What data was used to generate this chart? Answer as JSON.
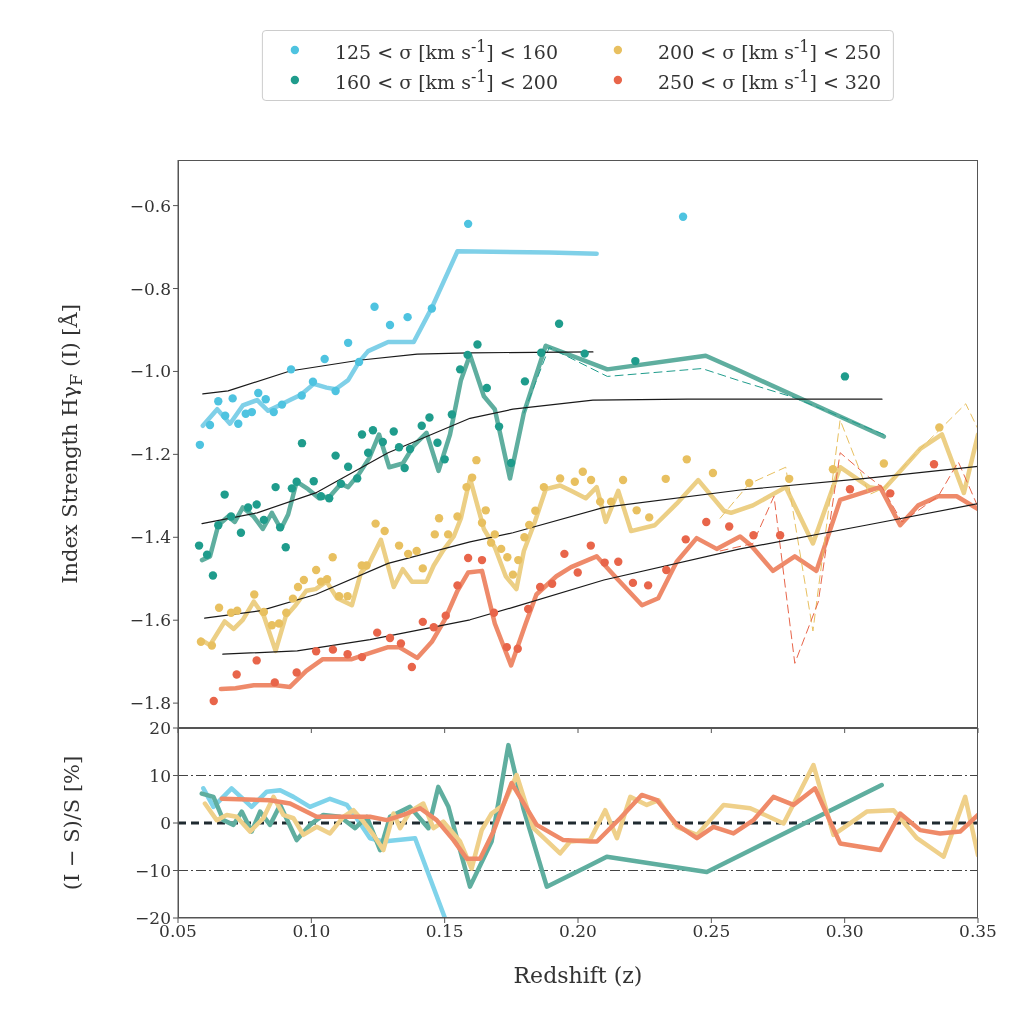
{
  "chart_data": [
    {
      "type": "scatter",
      "ylabel": "Index Strength Hγ$_{F}$ (I) [Å]",
      "legend": "top",
      "tick_labels": "y",
      "xlim": [
        0.05,
        0.35
      ],
      "xticks": [
        0.05,
        0.1,
        0.15,
        0.2,
        0.25,
        0.3,
        0.35
      ],
      "ylim": [
        -1.86,
        -0.49
      ],
      "yticks": [
        {
          "value": -1.8,
          "label": "−1.8"
        },
        {
          "value": -1.6,
          "label": "−1.6"
        },
        {
          "value": -1.4,
          "label": "−1.4"
        },
        {
          "value": -1.2,
          "label": "−1.2"
        },
        {
          "value": -1.0,
          "label": "−1.0"
        },
        {
          "value": -0.8,
          "label": "−0.8"
        },
        {
          "value": -0.6,
          "label": "−0.6"
        }
      ],
      "series": [
        {
          "name": "125 < σ [km s$^{-1}$] < 160",
          "color": "#4ec3e0",
          "marker": "circle",
          "x": [
            0.0582,
            0.062,
            0.0651,
            0.0677,
            0.0705,
            0.0726,
            0.0754,
            0.0777,
            0.0801,
            0.0829,
            0.0859,
            0.089,
            0.0924,
            0.0964,
            0.1006,
            0.105,
            0.1091,
            0.1138,
            0.1179,
            0.1237,
            0.1295,
            0.1361,
            0.1452,
            0.1588,
            0.2394
          ],
          "values": [
            -1.177,
            -1.129,
            -1.072,
            -1.107,
            -1.065,
            -1.126,
            -1.102,
            -1.098,
            -1.052,
            -1.067,
            -1.098,
            -1.08,
            -0.995,
            -1.058,
            -1.025,
            -0.97,
            -1.047,
            -0.931,
            -0.977,
            -0.844,
            -0.888,
            -0.869,
            -0.848,
            -0.644,
            -0.627
          ]
        },
        {
          "name": "160 < σ [km s$^{-1}$] < 200",
          "color": "#1f9c8c",
          "marker": "circle",
          "x": [
            0.0579,
            0.0609,
            0.0631,
            0.0651,
            0.0675,
            0.0699,
            0.0736,
            0.0763,
            0.0795,
            0.0822,
            0.0866,
            0.0883,
            0.0904,
            0.0927,
            0.0945,
            0.0965,
            0.1009,
            0.1036,
            0.1067,
            0.1091,
            0.1111,
            0.1138,
            0.1172,
            0.119,
            0.1213,
            0.1231,
            0.1268,
            0.1309,
            0.1329,
            0.135,
            0.137,
            0.1414,
            0.1443,
            0.1473,
            0.15,
            0.1527,
            0.1558,
            0.1586,
            0.1623,
            0.1658,
            0.1704,
            0.1749,
            0.1801,
            0.1862,
            0.1929,
            0.2025,
            0.2215,
            0.3001
          ],
          "values": [
            -1.42,
            -1.442,
            -1.492,
            -1.371,
            -1.297,
            -1.35,
            -1.389,
            -1.328,
            -1.321,
            -1.358,
            -1.279,
            -1.376,
            -1.424,
            -1.282,
            -1.266,
            -1.173,
            -1.265,
            -1.301,
            -1.306,
            -1.203,
            -1.271,
            -1.23,
            -1.258,
            -1.152,
            -1.196,
            -1.142,
            -1.17,
            -1.145,
            -1.183,
            -1.233,
            -1.187,
            -1.131,
            -1.111,
            -1.172,
            -1.212,
            -1.104,
            -0.995,
            -0.96,
            -0.935,
            -1.04,
            -1.133,
            -1.221,
            -1.024,
            -0.955,
            -0.885,
            -0.957,
            -0.975,
            -1.012
          ]
        },
        {
          "name": "200 < σ [km s$^{-1}$] < 250",
          "color": "#e8c060",
          "marker": "circle",
          "x": [
            0.0586,
            0.0627,
            0.0654,
            0.0699,
            0.0722,
            0.0786,
            0.0822,
            0.0852,
            0.0879,
            0.0906,
            0.0931,
            0.095,
            0.0972,
            0.1018,
            0.1036,
            0.1059,
            0.108,
            0.1104,
            0.1136,
            0.1189,
            0.1207,
            0.1241,
            0.1275,
            0.1329,
            0.1363,
            0.1395,
            0.1418,
            0.1463,
            0.1479,
            0.1513,
            0.1548,
            0.1582,
            0.1603,
            0.1619,
            0.164,
            0.1654,
            0.1674,
            0.1688,
            0.1712,
            0.1735,
            0.1756,
            0.1776,
            0.1799,
            0.1817,
            0.184,
            0.1872,
            0.1933,
            0.1988,
            0.2018,
            0.2049,
            0.2083,
            0.2124,
            0.2169,
            0.222,
            0.2267,
            0.2329,
            0.2408,
            0.2506,
            0.2642,
            0.2792,
            0.2956,
            0.3147,
            0.3355
          ],
          "values": [
            -1.652,
            -1.661,
            -1.57,
            -1.582,
            -1.577,
            -1.538,
            -1.58,
            -1.612,
            -1.608,
            -1.582,
            -1.548,
            -1.52,
            -1.503,
            -1.479,
            -1.507,
            -1.501,
            -1.448,
            -1.542,
            -1.542,
            -1.468,
            -1.468,
            -1.367,
            -1.385,
            -1.42,
            -1.44,
            -1.433,
            -1.475,
            -1.393,
            -1.354,
            -1.393,
            -1.35,
            -1.279,
            -1.256,
            -1.214,
            -1.365,
            -1.335,
            -1.413,
            -1.393,
            -1.428,
            -1.448,
            -1.49,
            -1.455,
            -1.4,
            -1.37,
            -1.336,
            -1.279,
            -1.258,
            -1.266,
            -1.242,
            -1.262,
            -1.314,
            -1.314,
            -1.262,
            -1.335,
            -1.352,
            -1.259,
            -1.212,
            -1.245,
            -1.269,
            -1.259,
            -1.236,
            -1.222,
            -1.135
          ]
        },
        {
          "name": "250 < σ [km s$^{-1}$] < 320",
          "color": "#e8654a",
          "marker": "circle",
          "x": [
            0.0634,
            0.072,
            0.0795,
            0.0863,
            0.0945,
            0.1018,
            0.1081,
            0.1136,
            0.119,
            0.1247,
            0.1295,
            0.1336,
            0.1377,
            0.1418,
            0.1459,
            0.1504,
            0.1548,
            0.1588,
            0.164,
            0.1685,
            0.1733,
            0.1774,
            0.1813,
            0.1858,
            0.1903,
            0.1949,
            0.1999,
            0.2048,
            0.21,
            0.2151,
            0.2206,
            0.2263,
            0.2331,
            0.2404,
            0.2481,
            0.2567,
            0.2658,
            0.2758,
            0.302,
            0.3171,
            0.3335
          ],
          "values": [
            -1.795,
            -1.731,
            -1.697,
            -1.75,
            -1.726,
            -1.675,
            -1.671,
            -1.682,
            -1.689,
            -1.63,
            -1.643,
            -1.656,
            -1.713,
            -1.604,
            -1.617,
            -1.589,
            -1.516,
            -1.45,
            -1.455,
            -1.582,
            -1.665,
            -1.669,
            -1.573,
            -1.52,
            -1.512,
            -1.44,
            -1.485,
            -1.42,
            -1.461,
            -1.459,
            -1.51,
            -1.516,
            -1.479,
            -1.405,
            -1.363,
            -1.374,
            -1.395,
            -1.395,
            -1.284,
            -1.294,
            -1.224
          ]
        },
        {
          "type": "line",
          "color": "#7fd0e8",
          "x": [
            0.0593,
            0.0647,
            0.0695,
            0.0743,
            0.0797,
            0.0838,
            0.0879,
            0.092,
            0.0961,
            0.1009,
            0.1057,
            0.1091,
            0.1138,
            0.1179,
            0.1213,
            0.1288,
            0.1384,
            0.1452,
            0.1548,
            0.1892,
            0.207
          ],
          "values": [
            -1.131,
            -1.091,
            -1.126,
            -1.082,
            -1.069,
            -1.095,
            -1.082,
            -1.069,
            -1.056,
            -1.03,
            -1.039,
            -1.043,
            -1.021,
            -0.977,
            -0.951,
            -0.929,
            -0.929,
            -0.846,
            -0.71,
            -0.713,
            -0.716
          ]
        },
        {
          "type": "line",
          "color": "#5fae9f",
          "x": [
            0.059,
            0.062,
            0.0651,
            0.0688,
            0.0713,
            0.0743,
            0.0784,
            0.0818,
            0.0852,
            0.0886,
            0.0913,
            0.0945,
            0.0988,
            0.1029,
            0.107,
            0.1111,
            0.1138,
            0.1179,
            0.1217,
            0.1254,
            0.1292,
            0.1343,
            0.1384,
            0.1432,
            0.1477,
            0.152,
            0.1561,
            0.1595,
            0.1647,
            0.1688,
            0.1745,
            0.1797,
            0.1879,
            0.211,
            0.2479,
            0.2608,
            0.3147
          ],
          "values": [
            -1.455,
            -1.446,
            -1.371,
            -1.35,
            -1.363,
            -1.328,
            -1.35,
            -1.38,
            -1.341,
            -1.38,
            -1.345,
            -1.266,
            -1.284,
            -1.306,
            -1.301,
            -1.271,
            -1.279,
            -1.247,
            -1.209,
            -1.152,
            -1.231,
            -1.222,
            -1.179,
            -1.148,
            -1.24,
            -1.152,
            -1.021,
            -0.96,
            -1.06,
            -1.091,
            -1.258,
            -1.1,
            -0.938,
            -0.995,
            -0.962,
            -0.999,
            -1.157
          ]
        },
        {
          "type": "line",
          "color": "#eccf85",
          "x": [
            0.0586,
            0.062,
            0.0675,
            0.0709,
            0.0743,
            0.0784,
            0.0822,
            0.0866,
            0.0904,
            0.0941,
            0.0981,
            0.1016,
            0.1057,
            0.1097,
            0.1152,
            0.1186,
            0.1213,
            0.1261,
            0.1309,
            0.1343,
            0.1377,
            0.1432,
            0.1459,
            0.1493,
            0.1534,
            0.1561,
            0.1595,
            0.1647,
            0.1688,
            0.1729,
            0.1769,
            0.1797,
            0.1838,
            0.1879,
            0.1933,
            0.1974,
            0.2029,
            0.207,
            0.2104,
            0.2151,
            0.2199,
            0.2288,
            0.237,
            0.2451,
            0.2547,
            0.2574,
            0.2656,
            0.2779,
            0.2881,
            0.2983,
            0.3092,
            0.3147,
            0.3283,
            0.3365,
            0.3447,
            0.35
          ],
          "values": [
            -1.647,
            -1.66,
            -1.603,
            -1.621,
            -1.599,
            -1.555,
            -1.59,
            -1.674,
            -1.591,
            -1.564,
            -1.529,
            -1.525,
            -1.507,
            -1.547,
            -1.564,
            -1.485,
            -1.468,
            -1.406,
            -1.52,
            -1.477,
            -1.507,
            -1.507,
            -1.468,
            -1.433,
            -1.398,
            -1.354,
            -1.258,
            -1.38,
            -1.424,
            -1.494,
            -1.525,
            -1.433,
            -1.363,
            -1.284,
            -1.275,
            -1.288,
            -1.306,
            -1.279,
            -1.363,
            -1.288,
            -1.385,
            -1.371,
            -1.319,
            -1.262,
            -1.336,
            -1.341,
            -1.323,
            -1.279,
            -1.415,
            -1.231,
            -1.279,
            -1.284,
            -1.187,
            -1.152,
            -1.293,
            -1.152
          ]
        },
        {
          "type": "line",
          "color": "#ee8a6a",
          "x": [
            0.0661,
            0.0716,
            0.0784,
            0.0866,
            0.092,
            0.0981,
            0.1043,
            0.1097,
            0.1152,
            0.1207,
            0.1288,
            0.1329,
            0.1397,
            0.1452,
            0.15,
            0.1548,
            0.1588,
            0.164,
            0.1688,
            0.1749,
            0.1804,
            0.1844,
            0.1919,
            0.1974,
            0.207,
            0.2138,
            0.224,
            0.2301,
            0.237,
            0.2445,
            0.252,
            0.2608,
            0.2649,
            0.2731,
            0.2813,
            0.2894,
            0.2983,
            0.3133,
            0.3208,
            0.3276,
            0.3351,
            0.342,
            0.35
          ],
          "values": [
            -1.766,
            -1.764,
            -1.757,
            -1.757,
            -1.761,
            -1.722,
            -1.694,
            -1.694,
            -1.694,
            -1.682,
            -1.665,
            -1.665,
            -1.691,
            -1.652,
            -1.599,
            -1.529,
            -1.485,
            -1.481,
            -1.608,
            -1.709,
            -1.608,
            -1.538,
            -1.494,
            -1.472,
            -1.446,
            -1.494,
            -1.564,
            -1.547,
            -1.459,
            -1.402,
            -1.428,
            -1.398,
            -1.42,
            -1.481,
            -1.446,
            -1.481,
            -1.31,
            -1.279,
            -1.371,
            -1.323,
            -1.301,
            -1.301,
            -1.332
          ]
        },
        {
          "type": "line",
          "color": "#1f9c8c",
          "line_style": "dashed",
          "x": [
            0.1797,
            0.1892,
            0.211,
            0.2465,
            0.2608,
            0.2806,
            0.3147
          ],
          "values": [
            -1.1,
            -0.942,
            -1.012,
            -0.993,
            -1.023,
            -1.062,
            -1.152
          ]
        },
        {
          "type": "line",
          "color": "#e8c060",
          "line_style": "dashed",
          "x": [
            0.2533,
            0.2642,
            0.2779,
            0.2881,
            0.2983,
            0.3092,
            0.3147,
            0.3283,
            0.3365,
            0.3454,
            0.35
          ],
          "values": [
            -1.354,
            -1.271,
            -1.231,
            -1.626,
            -1.117,
            -1.297,
            -1.281,
            -1.187,
            -1.135,
            -1.078,
            -1.139
          ]
        },
        {
          "type": "line",
          "color": "#e8654a",
          "line_style": "dashed",
          "x": [
            0.2533,
            0.2656,
            0.2735,
            0.2813,
            0.2901,
            0.2983,
            0.3079,
            0.314,
            0.3215,
            0.3351,
            0.3426,
            0.35
          ],
          "values": [
            -1.433,
            -1.415,
            -1.301,
            -1.704,
            -1.556,
            -1.196,
            -1.249,
            -1.279,
            -1.363,
            -1.301,
            -1.218,
            -1.327
          ]
        },
        {
          "type": "line",
          "color": "#1a1a1a",
          "line_style": "solid",
          "x": [
            0.0593,
            0.0688,
            0.092,
            0.1179,
            0.1397,
            0.1595,
            0.2056
          ],
          "values": [
            -1.054,
            -1.047,
            -0.999,
            -0.973,
            -0.958,
            -0.955,
            -0.953
          ]
        },
        {
          "type": "line",
          "color": "#1a1a1a",
          "line_style": "solid",
          "x": [
            0.059,
            0.0797,
            0.1016,
            0.1288,
            0.1595,
            0.1756,
            0.2056,
            0.241,
            0.314
          ],
          "values": [
            -1.367,
            -1.341,
            -1.293,
            -1.196,
            -1.113,
            -1.091,
            -1.069,
            -1.067,
            -1.067
          ]
        },
        {
          "type": "line",
          "color": "#1a1a1a",
          "line_style": "solid",
          "x": [
            0.06,
            0.0811,
            0.1016,
            0.1288,
            0.1595,
            0.1756,
            0.2097,
            0.2608,
            0.3079,
            0.35
          ],
          "values": [
            -1.595,
            -1.577,
            -1.538,
            -1.463,
            -1.411,
            -1.389,
            -1.328,
            -1.286,
            -1.258,
            -1.229
          ]
        },
        {
          "type": "line",
          "color": "#1a1a1a",
          "line_style": "solid",
          "x": [
            0.0668,
            0.0947,
            0.122,
            0.1595,
            0.1756,
            0.2097,
            0.2608,
            0.3079,
            0.35
          ],
          "values": [
            -1.682,
            -1.674,
            -1.647,
            -1.599,
            -1.569,
            -1.503,
            -1.428,
            -1.371,
            -1.319
          ]
        }
      ]
    },
    {
      "type": "line",
      "ylabel": "(I − S)/S [%]",
      "xlabel": "Redshift (z)",
      "xlim": [
        0.05,
        0.35
      ],
      "xticks": [
        0.05,
        {
          "value": 0.1,
          "label": "0.10"
        },
        {
          "value": 0.15,
          "label": "0.15"
        },
        {
          "value": 0.2,
          "label": "0.20"
        },
        {
          "value": 0.25,
          "label": "0.25"
        },
        {
          "value": 0.3,
          "label": "0.30"
        },
        {
          "value": 0.35,
          "label": "0.35"
        }
      ],
      "ylim": [
        -20,
        20
      ],
      "yticks": [
        {
          "value": -20,
          "label": "−20"
        },
        {
          "value": -10,
          "label": "−10"
        },
        0,
        10,
        20
      ],
      "ref_lines": [
        {
          "axis": "y",
          "value": 0,
          "color": "#1f2a30",
          "line_style": "dashed"
        },
        {
          "axis": "y",
          "value": 10,
          "color": "#444444",
          "line_style": "dotted"
        },
        {
          "axis": "y",
          "value": -10,
          "color": "#444444",
          "line_style": "dotted"
        }
      ],
      "series": [
        {
          "color": "#7fd3ea",
          "x": [
            0.0595,
            0.0633,
            0.0701,
            0.0776,
            0.0833,
            0.0883,
            0.0933,
            0.0995,
            0.107,
            0.1133,
            0.117,
            0.122,
            0.127,
            0.1389,
            0.1501
          ],
          "values": [
            7.3,
            3.4,
            7.3,
            3.4,
            6.6,
            6.9,
            5.5,
            3.4,
            5.1,
            3.8,
            1.0,
            -3.2,
            -3.9,
            -3.2,
            -20
          ]
        },
        {
          "color": "#5fae9f",
          "x": [
            0.0589,
            0.0633,
            0.067,
            0.0708,
            0.0739,
            0.0776,
            0.0808,
            0.0845,
            0.0883,
            0.0945,
            0.0995,
            0.1045,
            0.1108,
            0.1164,
            0.1208,
            0.1258,
            0.1295,
            0.137,
            0.1439,
            0.1476,
            0.1514,
            0.1595,
            0.1676,
            0.1739,
            0.1795,
            0.1883,
            0.2045,
            0.2108,
            0.2483,
            0.3139
          ],
          "values": [
            6.2,
            5.5,
            0.6,
            -0.4,
            2.4,
            -1.8,
            2.4,
            -0.4,
            3.8,
            -3.6,
            -0.4,
            1.7,
            1.3,
            -1.1,
            1.3,
            -5.7,
            1.3,
            3.4,
            -1.1,
            7.6,
            3.4,
            -13.4,
            -3.9,
            16.4,
            3.1,
            -13.4,
            -8.9,
            -7.1,
            -10.3,
            8.0
          ]
        },
        {
          "color": "#efd08a",
          "x": [
            0.0601,
            0.0645,
            0.0683,
            0.072,
            0.077,
            0.082,
            0.0858,
            0.0895,
            0.0933,
            0.097,
            0.102,
            0.107,
            0.112,
            0.1158,
            0.1195,
            0.1233,
            0.127,
            0.1308,
            0.1333,
            0.137,
            0.142,
            0.1458,
            0.1495,
            0.1558,
            0.1601,
            0.1639,
            0.1676,
            0.172,
            0.177,
            0.1833,
            0.1933,
            0.197,
            0.2045,
            0.2102,
            0.2146,
            0.2196,
            0.2258,
            0.2302,
            0.2371,
            0.2446,
            0.2546,
            0.2646,
            0.2771,
            0.2883,
            0.2958,
            0.3083,
            0.3183,
            0.3271,
            0.3371,
            0.3452,
            0.35
          ],
          "values": [
            4.1,
            0.6,
            1.7,
            1.3,
            -1.8,
            1.0,
            5.5,
            1.7,
            1.0,
            -2.5,
            -0.8,
            -2.2,
            1.3,
            2.7,
            0.3,
            -2.5,
            -5.7,
            2.0,
            -1.1,
            2.4,
            4.1,
            -1.1,
            0.3,
            -3.9,
            -9.6,
            -1.5,
            2.0,
            3.8,
            10.1,
            -1.1,
            -6.4,
            -3.9,
            -3.6,
            2.7,
            -3.2,
            5.5,
            3.8,
            4.8,
            -0.8,
            -2.5,
            3.8,
            3.1,
            -0.1,
            12.2,
            -2.5,
            2.4,
            2.7,
            -3.2,
            -7.1,
            5.5,
            -6.8
          ]
        },
        {
          "color": "#ef8a68",
          "x": [
            0.0664,
            0.0845,
            0.092,
            0.102,
            0.1095,
            0.122,
            0.1283,
            0.1345,
            0.1408,
            0.147,
            0.1533,
            0.1583,
            0.1633,
            0.1683,
            0.1751,
            0.1845,
            0.1945,
            0.2045,
            0.2071,
            0.2158,
            0.2239,
            0.2296,
            0.2371,
            0.2446,
            0.2508,
            0.2583,
            0.2658,
            0.2733,
            0.2808,
            0.2889,
            0.2983,
            0.3133,
            0.3208,
            0.3283,
            0.3358,
            0.3433,
            0.35
          ],
          "values": [
            5.1,
            4.8,
            4.1,
            1.3,
            1.3,
            1.3,
            0.6,
            1.7,
            3.1,
            0.6,
            -3.6,
            -7.5,
            -7.5,
            -1.8,
            8.4,
            -0.4,
            -3.6,
            -3.9,
            -3.9,
            1.0,
            5.9,
            4.8,
            -0.4,
            -3.2,
            -0.8,
            -2.2,
            0.6,
            5.5,
            3.8,
            7.3,
            -4.3,
            -5.7,
            2.0,
            -1.5,
            -2.2,
            -1.8,
            1.7
          ]
        }
      ]
    }
  ]
}
